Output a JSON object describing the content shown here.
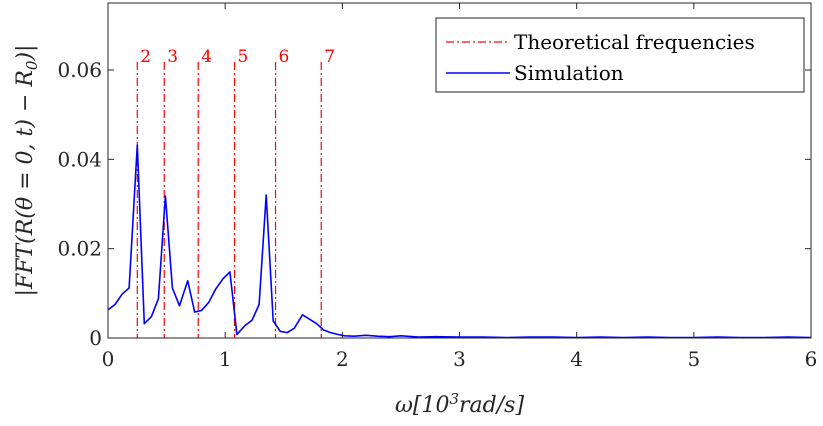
{
  "chart_data": {
    "type": "line",
    "xlabel": "ω[10³rad/s]",
    "ylabel": "|FFT(R(θ = 0, t) − R₀)|",
    "xlim": [
      0,
      6
    ],
    "ylim": [
      0,
      0.075
    ],
    "xticks": [
      0,
      1,
      2,
      3,
      4,
      5,
      6
    ],
    "xtick_labels": [
      "0",
      "1",
      "2",
      "3",
      "4",
      "5",
      "6"
    ],
    "yticks": [
      0,
      0.02,
      0.04,
      0.06
    ],
    "ytick_labels": [
      "0",
      "0.02",
      "0.04",
      "0.06"
    ],
    "grid": false,
    "legend_position": "top-right",
    "legend": [
      "Theoretical frequencies",
      "Simulation"
    ],
    "theoretical_frequencies": {
      "name": "Theoretical frequencies",
      "color": "#ff0000",
      "style": "dash-dot",
      "labels": [
        "2",
        "3",
        "4",
        "5",
        "6",
        "7"
      ],
      "x": [
        0.25,
        0.48,
        0.77,
        1.08,
        1.43,
        1.82
      ]
    },
    "series": [
      {
        "name": "Simulation",
        "color": "#0000ff",
        "x": [
          0.0,
          0.06,
          0.12,
          0.18,
          0.25,
          0.31,
          0.37,
          0.43,
          0.49,
          0.55,
          0.61,
          0.68,
          0.74,
          0.8,
          0.86,
          0.92,
          0.98,
          1.04,
          1.1,
          1.17,
          1.23,
          1.29,
          1.35,
          1.41,
          1.47,
          1.53,
          1.59,
          1.66,
          1.72,
          1.78,
          1.84,
          1.9,
          1.96,
          2.02,
          2.1,
          2.2,
          2.3,
          2.4,
          2.5,
          2.65,
          2.8,
          3.0,
          3.2,
          3.4,
          3.6,
          3.8,
          4.0,
          4.2,
          4.4,
          4.6,
          4.8,
          5.0,
          5.2,
          5.4,
          5.6,
          5.8,
          6.0
        ],
        "values": [
          0.0063,
          0.0075,
          0.0098,
          0.0112,
          0.0432,
          0.0032,
          0.0048,
          0.0088,
          0.0318,
          0.0112,
          0.0072,
          0.0128,
          0.0058,
          0.0062,
          0.008,
          0.011,
          0.0132,
          0.0148,
          0.0008,
          0.0028,
          0.004,
          0.0075,
          0.032,
          0.0038,
          0.0015,
          0.0012,
          0.0022,
          0.0052,
          0.0042,
          0.0032,
          0.0018,
          0.0012,
          0.0008,
          0.0005,
          0.0004,
          0.0006,
          0.0004,
          0.0003,
          0.0005,
          0.0002,
          0.0003,
          0.0002,
          0.0002,
          0.0001,
          0.0002,
          0.0002,
          0.0001,
          0.0002,
          0.0001,
          0.0002,
          0.0001,
          0.0001,
          0.0002,
          0.0001,
          0.0001,
          0.0002,
          0.0001
        ]
      }
    ]
  }
}
